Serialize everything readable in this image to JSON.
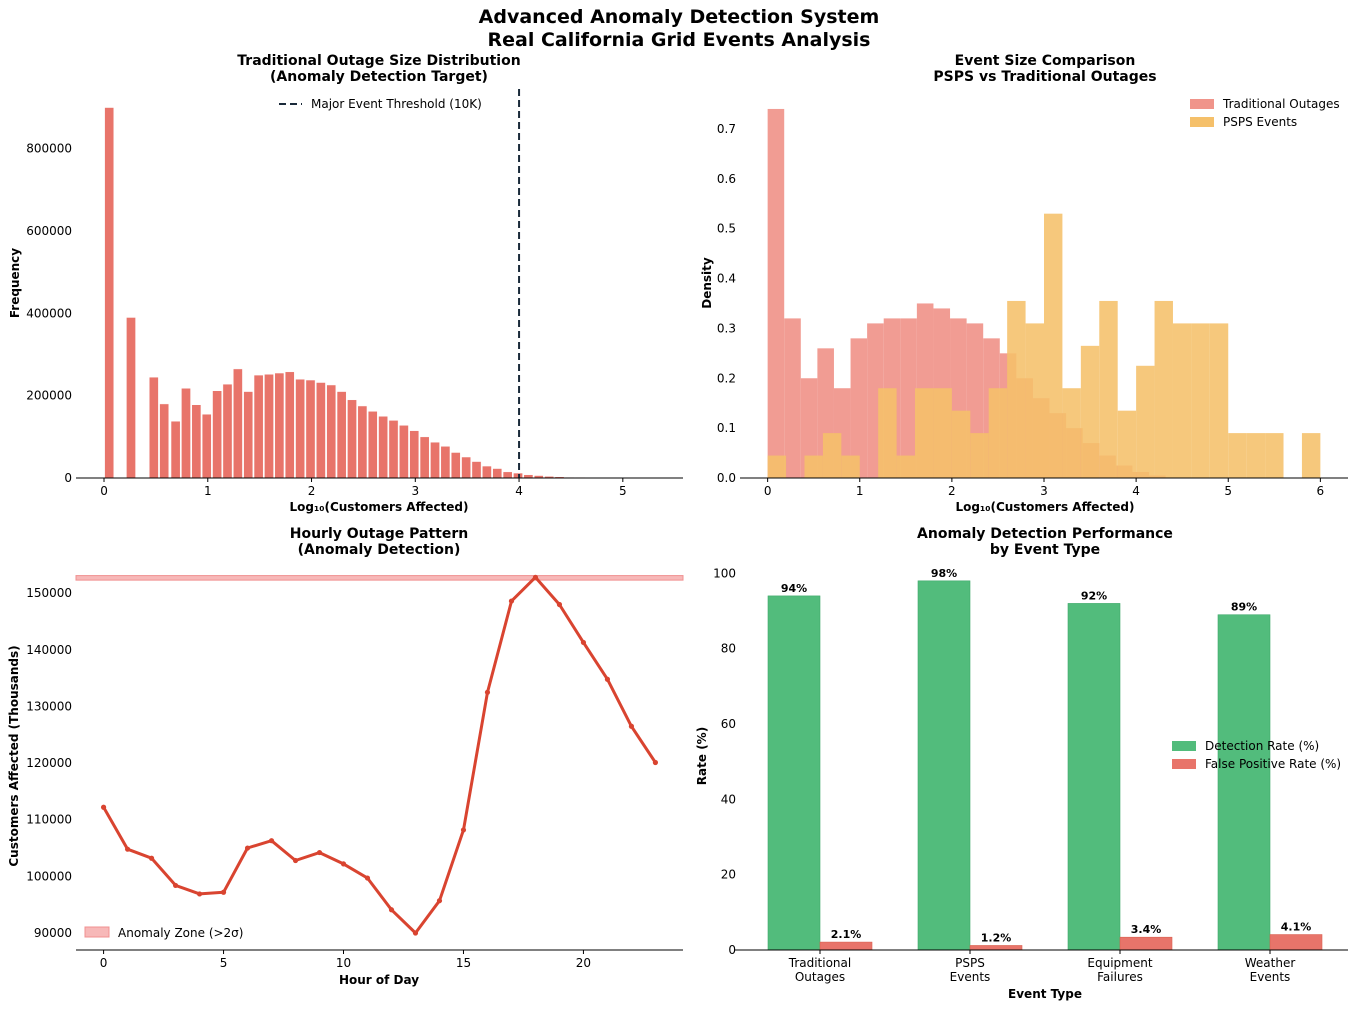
{
  "figure": {
    "suptitle_line1": "Advanced Anomaly Detection System",
    "suptitle_line2": "Real California Grid Events Analysis",
    "colors": {
      "traditional": "#e8746a",
      "traditional_density": "#f0948a",
      "psps": "#f5c06a",
      "overlap": "#f0a040",
      "hourly_line": "#d94430",
      "anomaly_zone": "#f7b8b8",
      "detection": "#52bc7c",
      "false_positive": "#e8746a",
      "threshold": "#1a2a3a"
    }
  },
  "chart_data": [
    {
      "id": "outage_size_hist",
      "type": "bar",
      "title_line1": "Traditional Outage Size Distribution",
      "title_line2": "(Anomaly Detection Target)",
      "xlabel": "Log₁₀(Customers Affected)",
      "ylabel": "Frequency",
      "xlim": [
        -0.27,
        5.58
      ],
      "ylim": [
        0,
        945000
      ],
      "xticks": [
        0,
        1,
        2,
        3,
        4,
        5
      ],
      "yticks": [
        0,
        200000,
        400000,
        600000,
        800000
      ],
      "bin_width": 0.1,
      "bins": [
        {
          "x": 0.05,
          "value": 900000
        },
        {
          "x": 0.26,
          "value": 390000
        },
        {
          "x": 0.48,
          "value": 245000
        },
        {
          "x": 0.58,
          "value": 180000
        },
        {
          "x": 0.69,
          "value": 138000
        },
        {
          "x": 0.79,
          "value": 218000
        },
        {
          "x": 0.89,
          "value": 178000
        },
        {
          "x": 0.99,
          "value": 155000
        },
        {
          "x": 1.09,
          "value": 212000
        },
        {
          "x": 1.19,
          "value": 228000
        },
        {
          "x": 1.29,
          "value": 265000
        },
        {
          "x": 1.39,
          "value": 210000
        },
        {
          "x": 1.49,
          "value": 250000
        },
        {
          "x": 1.59,
          "value": 252000
        },
        {
          "x": 1.69,
          "value": 255000
        },
        {
          "x": 1.79,
          "value": 258000
        },
        {
          "x": 1.89,
          "value": 240000
        },
        {
          "x": 1.99,
          "value": 238000
        },
        {
          "x": 2.09,
          "value": 232000
        },
        {
          "x": 2.19,
          "value": 226000
        },
        {
          "x": 2.29,
          "value": 210000
        },
        {
          "x": 2.39,
          "value": 190000
        },
        {
          "x": 2.49,
          "value": 175000
        },
        {
          "x": 2.59,
          "value": 162000
        },
        {
          "x": 2.69,
          "value": 150000
        },
        {
          "x": 2.79,
          "value": 140000
        },
        {
          "x": 2.89,
          "value": 128000
        },
        {
          "x": 2.99,
          "value": 115000
        },
        {
          "x": 3.09,
          "value": 100000
        },
        {
          "x": 3.19,
          "value": 87000
        },
        {
          "x": 3.29,
          "value": 77000
        },
        {
          "x": 3.39,
          "value": 62000
        },
        {
          "x": 3.49,
          "value": 51000
        },
        {
          "x": 3.59,
          "value": 40000
        },
        {
          "x": 3.69,
          "value": 29000
        },
        {
          "x": 3.79,
          "value": 23000
        },
        {
          "x": 3.89,
          "value": 15000
        },
        {
          "x": 3.99,
          "value": 12000
        },
        {
          "x": 4.09,
          "value": 8000
        },
        {
          "x": 4.19,
          "value": 6000
        },
        {
          "x": 4.29,
          "value": 4000
        },
        {
          "x": 4.39,
          "value": 3000
        },
        {
          "x": 4.49,
          "value": 2000
        },
        {
          "x": 4.59,
          "value": 1500
        },
        {
          "x": 4.69,
          "value": 1000
        },
        {
          "x": 4.79,
          "value": 700
        },
        {
          "x": 4.89,
          "value": 500
        },
        {
          "x": 4.99,
          "value": 400
        },
        {
          "x": 5.09,
          "value": 300
        },
        {
          "x": 5.19,
          "value": 200
        }
      ],
      "threshold": {
        "x": 4,
        "label": "Major Event Threshold (10K)"
      },
      "legend_position": "top-center",
      "grid": false
    },
    {
      "id": "size_comparison_density",
      "type": "bar",
      "title_line1": "Event Size Comparison",
      "title_line2": "PSPS vs Traditional Outages",
      "xlabel": "Log₁₀(Customers Affected)",
      "ylabel": "Density",
      "xlim": [
        -0.3,
        6.3
      ],
      "ylim": [
        0,
        0.78
      ],
      "xticks": [
        0,
        1,
        2,
        3,
        4,
        5,
        6
      ],
      "yticks": [
        0.0,
        0.1,
        0.2,
        0.3,
        0.4,
        0.5,
        0.6,
        0.7
      ],
      "legend_position": "top-right",
      "grid": false,
      "series": [
        {
          "name": "Traditional Outages",
          "bin_edges": [
            0,
            0.18,
            0.36,
            0.54,
            0.72,
            0.9,
            1.08,
            1.26,
            1.44,
            1.62,
            1.8,
            1.98,
            2.16,
            2.34,
            2.52,
            2.7,
            2.88,
            3.06,
            3.24,
            3.42,
            3.6,
            3.78,
            3.96,
            4.14,
            4.32
          ],
          "values": [
            0.74,
            0.32,
            0.2,
            0.26,
            0.18,
            0.28,
            0.31,
            0.32,
            0.32,
            0.35,
            0.34,
            0.32,
            0.31,
            0.28,
            0.25,
            0.2,
            0.16,
            0.13,
            0.1,
            0.07,
            0.045,
            0.025,
            0.012,
            0.005
          ]
        },
        {
          "name": "PSPS Events",
          "bin_edges": [
            0,
            0.2,
            0.4,
            0.6,
            0.8,
            1.0,
            1.2,
            1.4,
            1.6,
            1.8,
            2.0,
            2.2,
            2.4,
            2.6,
            2.8,
            3.0,
            3.2,
            3.4,
            3.6,
            3.8,
            4.0,
            4.2,
            4.4,
            4.6,
            4.8,
            5.0,
            5.2,
            5.4,
            5.6,
            5.8,
            6.0
          ],
          "values": [
            0.045,
            0.0,
            0.045,
            0.09,
            0.045,
            0.0,
            0.18,
            0.045,
            0.18,
            0.18,
            0.135,
            0.09,
            0.18,
            0.355,
            0.31,
            0.53,
            0.18,
            0.265,
            0.355,
            0.135,
            0.225,
            0.355,
            0.31,
            0.31,
            0.31,
            0.09,
            0.09,
            0.09,
            0.0,
            0.09
          ]
        }
      ]
    },
    {
      "id": "hourly_pattern",
      "type": "line",
      "title_line1": "Hourly Outage Pattern",
      "title_line2": "(Anomaly Detection)",
      "xlabel": "Hour of Day",
      "ylabel": "Customers Affected (Thousands)",
      "xlim": [
        -1.15,
        24.15
      ],
      "ylim": [
        87000,
        155500
      ],
      "xticks": [
        0,
        5,
        10,
        15,
        20
      ],
      "yticks": [
        90000,
        100000,
        110000,
        120000,
        130000,
        140000,
        150000
      ],
      "x": [
        0,
        1,
        2,
        3,
        4,
        5,
        6,
        7,
        8,
        9,
        10,
        11,
        12,
        13,
        14,
        15,
        16,
        17,
        18,
        19,
        20,
        21,
        22,
        23
      ],
      "values": [
        112200,
        104800,
        103200,
        98400,
        96900,
        97200,
        105000,
        106300,
        102800,
        104200,
        102200,
        99700,
        94100,
        90000,
        95700,
        108200,
        132500,
        148600,
        152800,
        148000,
        141300,
        134800,
        126500,
        120100
      ],
      "anomaly_zone": {
        "label": "Anomaly Zone (>2σ)",
        "y_from": 152300,
        "y_to": 153100
      },
      "legend_position": "bottom-left",
      "grid": false
    },
    {
      "id": "detection_performance",
      "type": "bar",
      "title_line1": "Anomaly Detection Performance",
      "title_line2": "by Event Type",
      "xlabel": "Event Type",
      "ylabel": "Rate (%)",
      "ylim": [
        0,
        103
      ],
      "yticks": [
        0,
        20,
        40,
        60,
        80,
        100
      ],
      "categories": [
        [
          "Traditional",
          "Outages"
        ],
        [
          "PSPS",
          "Events"
        ],
        [
          "Equipment",
          "Failures"
        ],
        [
          "Weather",
          "Events"
        ]
      ],
      "series": [
        {
          "name": "Detection Rate (%)",
          "values": [
            94,
            98,
            92,
            89
          ],
          "labels": [
            "94%",
            "98%",
            "92%",
            "89%"
          ]
        },
        {
          "name": "False Positive Rate (%)",
          "values": [
            2.1,
            1.2,
            3.4,
            4.1
          ],
          "labels": [
            "2.1%",
            "1.2%",
            "3.4%",
            "4.1%"
          ]
        }
      ],
      "legend_position": "center-right",
      "grid": false
    }
  ]
}
